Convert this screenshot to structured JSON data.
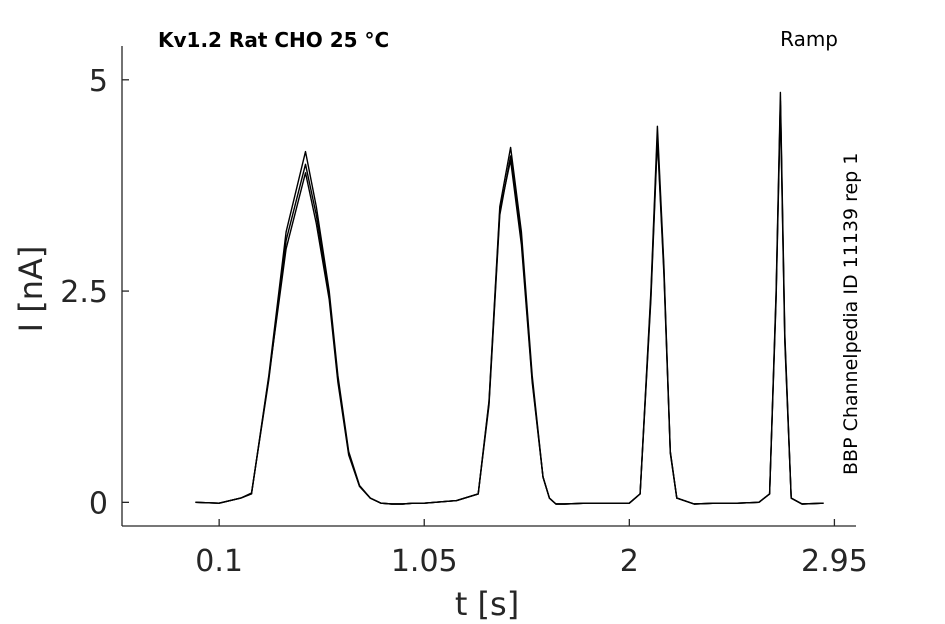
{
  "chart_data": {
    "type": "line",
    "title": "Kv1.2  Rat  CHO  25 °C",
    "protocol_label": "Ramp",
    "side_label": "BBP Channelpedia ID 11139 rep 1",
    "xlabel": "t [s]",
    "ylabel": "I [nA]",
    "xlim": [
      -0.35,
      3.05
    ],
    "ylim": [
      -0.28,
      5.4
    ],
    "xticks": [
      {
        "value": 0.1,
        "label": "0.1"
      },
      {
        "value": 1.05,
        "label": "1.05"
      },
      {
        "value": 2,
        "label": "2"
      },
      {
        "value": 2.95,
        "label": "2.95"
      }
    ],
    "yticks": [
      {
        "value": 0,
        "label": "0"
      },
      {
        "value": 2.5,
        "label": "2.5"
      },
      {
        "value": 5,
        "label": "5"
      }
    ],
    "grid": false,
    "line_color": "#000000",
    "series": [
      {
        "x": [
          -0.01,
          0.1,
          0.2,
          0.25,
          0.33,
          0.41,
          0.5,
          0.55,
          0.61,
          0.65,
          0.7,
          0.75,
          0.8,
          0.85,
          0.9,
          0.95,
          1.0,
          1.05,
          1.1,
          1.2,
          1.3,
          1.35,
          1.4,
          1.45,
          1.5,
          1.55,
          1.6,
          1.63,
          1.66,
          1.7,
          1.8,
          1.9,
          2.0,
          2.05,
          2.1,
          2.13,
          2.16,
          2.19,
          2.22,
          2.3,
          2.4,
          2.5,
          2.6,
          2.65,
          2.68,
          2.7,
          2.72,
          2.75,
          2.8,
          2.9
        ],
        "y": [
          0.0,
          -0.01,
          0.05,
          0.1,
          1.5,
          3.2,
          4.15,
          3.5,
          2.5,
          1.5,
          0.6,
          0.2,
          0.05,
          -0.01,
          -0.02,
          -0.02,
          -0.01,
          -0.01,
          0.0,
          0.02,
          0.1,
          1.2,
          3.5,
          4.2,
          3.2,
          1.5,
          0.3,
          0.05,
          -0.02,
          -0.02,
          -0.01,
          -0.01,
          -0.01,
          0.1,
          2.5,
          4.45,
          2.8,
          0.6,
          0.05,
          -0.02,
          -0.01,
          -0.01,
          0.0,
          0.1,
          2.5,
          4.85,
          2.0,
          0.05,
          -0.02,
          -0.01
        ]
      },
      {
        "x": [
          -0.01,
          0.1,
          0.2,
          0.25,
          0.33,
          0.41,
          0.5,
          0.55,
          0.61,
          0.65,
          0.7,
          0.75,
          0.8,
          0.85,
          0.9,
          0.95,
          1.0,
          1.05,
          1.1,
          1.2,
          1.3,
          1.35,
          1.4,
          1.45,
          1.5,
          1.55,
          1.6,
          1.63,
          1.66,
          1.7,
          1.8,
          1.9,
          2.0,
          2.05,
          2.1,
          2.13,
          2.16,
          2.19,
          2.22,
          2.3,
          2.4,
          2.5,
          2.6,
          2.65,
          2.68,
          2.7,
          2.72,
          2.75,
          2.8,
          2.9
        ],
        "y": [
          0.0,
          -0.01,
          0.05,
          0.11,
          1.45,
          3.1,
          4.0,
          3.4,
          2.45,
          1.45,
          0.58,
          0.19,
          0.05,
          -0.01,
          -0.02,
          -0.02,
          -0.01,
          -0.01,
          0.0,
          0.02,
          0.1,
          1.15,
          3.4,
          4.1,
          3.1,
          1.45,
          0.3,
          0.05,
          -0.02,
          -0.02,
          -0.01,
          -0.01,
          -0.01,
          0.1,
          2.45,
          4.35,
          2.75,
          0.6,
          0.05,
          -0.02,
          -0.01,
          -0.01,
          0.0,
          0.1,
          2.45,
          4.75,
          1.95,
          0.05,
          -0.02,
          -0.01
        ]
      },
      {
        "x": [
          -0.01,
          0.1,
          0.2,
          0.25,
          0.33,
          0.41,
          0.5,
          0.55,
          0.61,
          0.65,
          0.7,
          0.75,
          0.8,
          0.85,
          0.9,
          0.95,
          1.0,
          1.05,
          1.1,
          1.2,
          1.3,
          1.35,
          1.4,
          1.45,
          1.5,
          1.55,
          1.6,
          1.63,
          1.66,
          1.7,
          1.8,
          1.9,
          2.0,
          2.05,
          2.1,
          2.13,
          2.16,
          2.19,
          2.22,
          2.3,
          2.4,
          2.5,
          2.6,
          2.65,
          2.68,
          2.7,
          2.72,
          2.75,
          2.8,
          2.9
        ],
        "y": [
          0.0,
          -0.01,
          0.05,
          0.1,
          1.48,
          3.0,
          3.9,
          3.3,
          2.4,
          1.42,
          0.56,
          0.19,
          0.05,
          -0.01,
          -0.02,
          -0.02,
          -0.01,
          -0.01,
          0.0,
          0.02,
          0.1,
          1.18,
          3.45,
          4.05,
          3.05,
          1.42,
          0.3,
          0.05,
          -0.02,
          -0.02,
          -0.01,
          -0.01,
          -0.01,
          0.1,
          2.4,
          4.3,
          2.7,
          0.58,
          0.05,
          -0.02,
          -0.01,
          -0.01,
          0.0,
          0.1,
          2.4,
          4.7,
          1.9,
          0.05,
          -0.02,
          -0.01
        ]
      }
    ]
  }
}
